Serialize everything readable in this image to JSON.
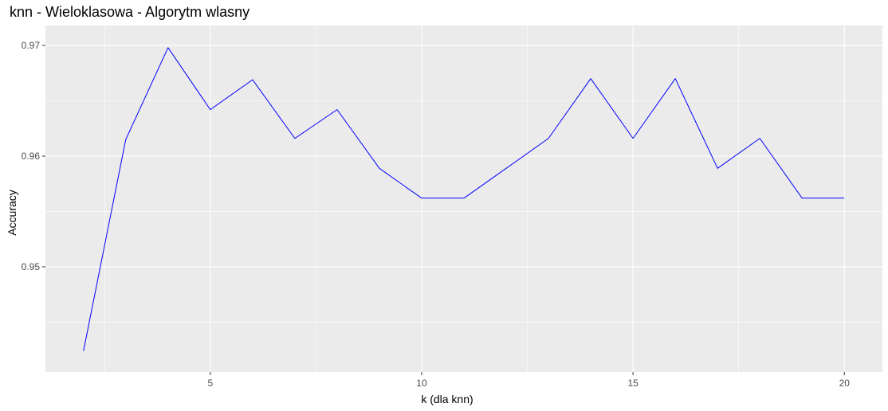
{
  "chart_data": {
    "type": "line",
    "title": "knn - Wieloklasowa - Algorytm wlasny",
    "xlabel": "k (dla knn)",
    "ylabel": "Accuracy",
    "x": [
      2,
      3,
      4,
      5,
      6,
      7,
      8,
      9,
      10,
      11,
      12,
      13,
      14,
      15,
      16,
      17,
      18,
      19,
      20
    ],
    "series": [
      {
        "values": [
          0.9424,
          0.9615,
          0.9698,
          0.9642,
          0.9669,
          0.9616,
          0.9642,
          0.9589,
          0.9562,
          0.9562,
          0.9589,
          0.9616,
          0.967,
          0.9616,
          0.967,
          0.9589,
          0.9616,
          0.9562,
          0.9562
        ],
        "color": "#0000ff"
      }
    ],
    "xlim": [
      1.1,
      20.9
    ],
    "ylim": [
      0.9405,
      0.9718
    ],
    "x_ticks": [
      5,
      10,
      15,
      20
    ],
    "x_tick_labels": [
      "5",
      "10",
      "15",
      "20"
    ],
    "y_ticks": [
      0.95,
      0.96,
      0.97
    ],
    "y_tick_labels": [
      "0.95",
      "0.96",
      "0.97"
    ],
    "grid": true,
    "background": "#ebebeb",
    "grid_major_color": "#ffffff",
    "axis_text_color": "#4d4d4d"
  }
}
